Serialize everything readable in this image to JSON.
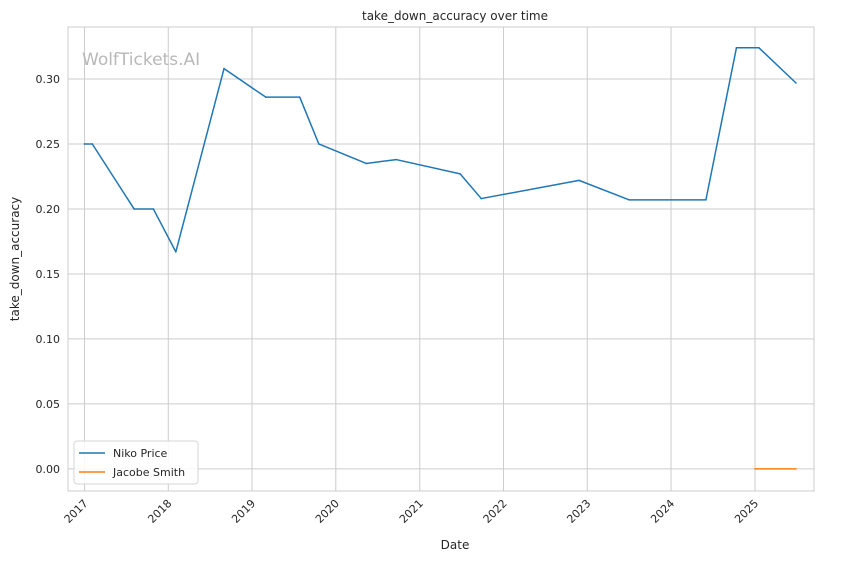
{
  "chart_data": {
    "type": "line",
    "title": "take_down_accuracy over time",
    "xlabel": "Date",
    "ylabel": "take_down_accuracy",
    "watermark": "WolfTickets.AI",
    "x_ticks": [
      "2017",
      "2018",
      "2019",
      "2020",
      "2021",
      "2022",
      "2023",
      "2024",
      "2025"
    ],
    "y_ticks": [
      "0.00",
      "0.05",
      "0.10",
      "0.15",
      "0.20",
      "0.25",
      "0.30"
    ],
    "ylim": [
      -0.017,
      0.34
    ],
    "xlim": [
      "2016-10-21",
      "2025-09-15"
    ],
    "grid": true,
    "legend_position": "lower-left",
    "series": [
      {
        "name": "Niko Price",
        "color": "#1f77b4",
        "points": [
          {
            "x": "2017-01-01",
            "y": 0.25
          },
          {
            "x": "2017-02-04",
            "y": 0.25
          },
          {
            "x": "2017-08-05",
            "y": 0.2
          },
          {
            "x": "2017-10-28",
            "y": 0.2
          },
          {
            "x": "2018-02-03",
            "y": 0.167
          },
          {
            "x": "2018-09-01",
            "y": 0.308
          },
          {
            "x": "2019-03-02",
            "y": 0.286
          },
          {
            "x": "2019-07-28",
            "y": 0.286
          },
          {
            "x": "2019-10-19",
            "y": 0.25
          },
          {
            "x": "2020-05-13",
            "y": 0.235
          },
          {
            "x": "2020-09-20",
            "y": 0.238
          },
          {
            "x": "2021-06-26",
            "y": 0.227
          },
          {
            "x": "2021-09-26",
            "y": 0.208
          },
          {
            "x": "2022-11-26",
            "y": 0.222
          },
          {
            "x": "2023-07-02",
            "y": 0.207
          },
          {
            "x": "2024-06-01",
            "y": 0.207
          },
          {
            "x": "2024-10-12",
            "y": 0.324
          },
          {
            "x": "2025-01-18",
            "y": 0.324
          },
          {
            "x": "2025-06-28",
            "y": 0.297
          }
        ]
      },
      {
        "name": "Jacobe Smith",
        "color": "#ff7f0e",
        "points": [
          {
            "x": "2025-01-01",
            "y": 0.0
          },
          {
            "x": "2025-06-28",
            "y": 0.0
          }
        ]
      }
    ]
  }
}
